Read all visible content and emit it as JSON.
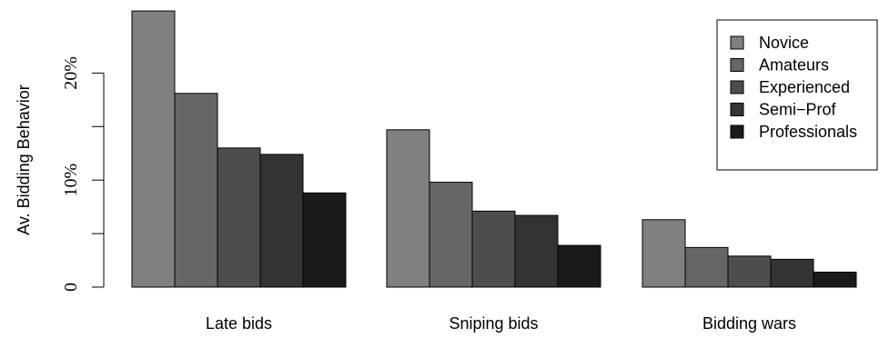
{
  "chart_data": {
    "type": "bar",
    "ylabel": "Av. Bidding Behavior",
    "categories": [
      "Late bids",
      "Sniping bids",
      "Bidding wars"
    ],
    "series": [
      {
        "name": "Novice",
        "color": "#808080",
        "values": [
          25.8,
          14.7,
          6.3
        ]
      },
      {
        "name": "Amateurs",
        "color": "#666666",
        "values": [
          18.1,
          9.8,
          3.7
        ]
      },
      {
        "name": "Experienced",
        "color": "#4d4d4d",
        "values": [
          13.0,
          7.1,
          2.9
        ]
      },
      {
        "name": "Semi−Prof",
        "color": "#333333",
        "values": [
          12.4,
          6.7,
          2.6
        ]
      },
      {
        "name": "Professionals",
        "color": "#1a1a1a",
        "values": [
          8.8,
          3.9,
          1.4
        ]
      }
    ],
    "ylim": [
      0,
      26
    ],
    "yticks": [
      0,
      5,
      10,
      15,
      20
    ],
    "ytick_labels": [
      "0",
      "",
      "10%",
      "",
      "20%"
    ],
    "legend_position": "top-right",
    "grid": false
  }
}
